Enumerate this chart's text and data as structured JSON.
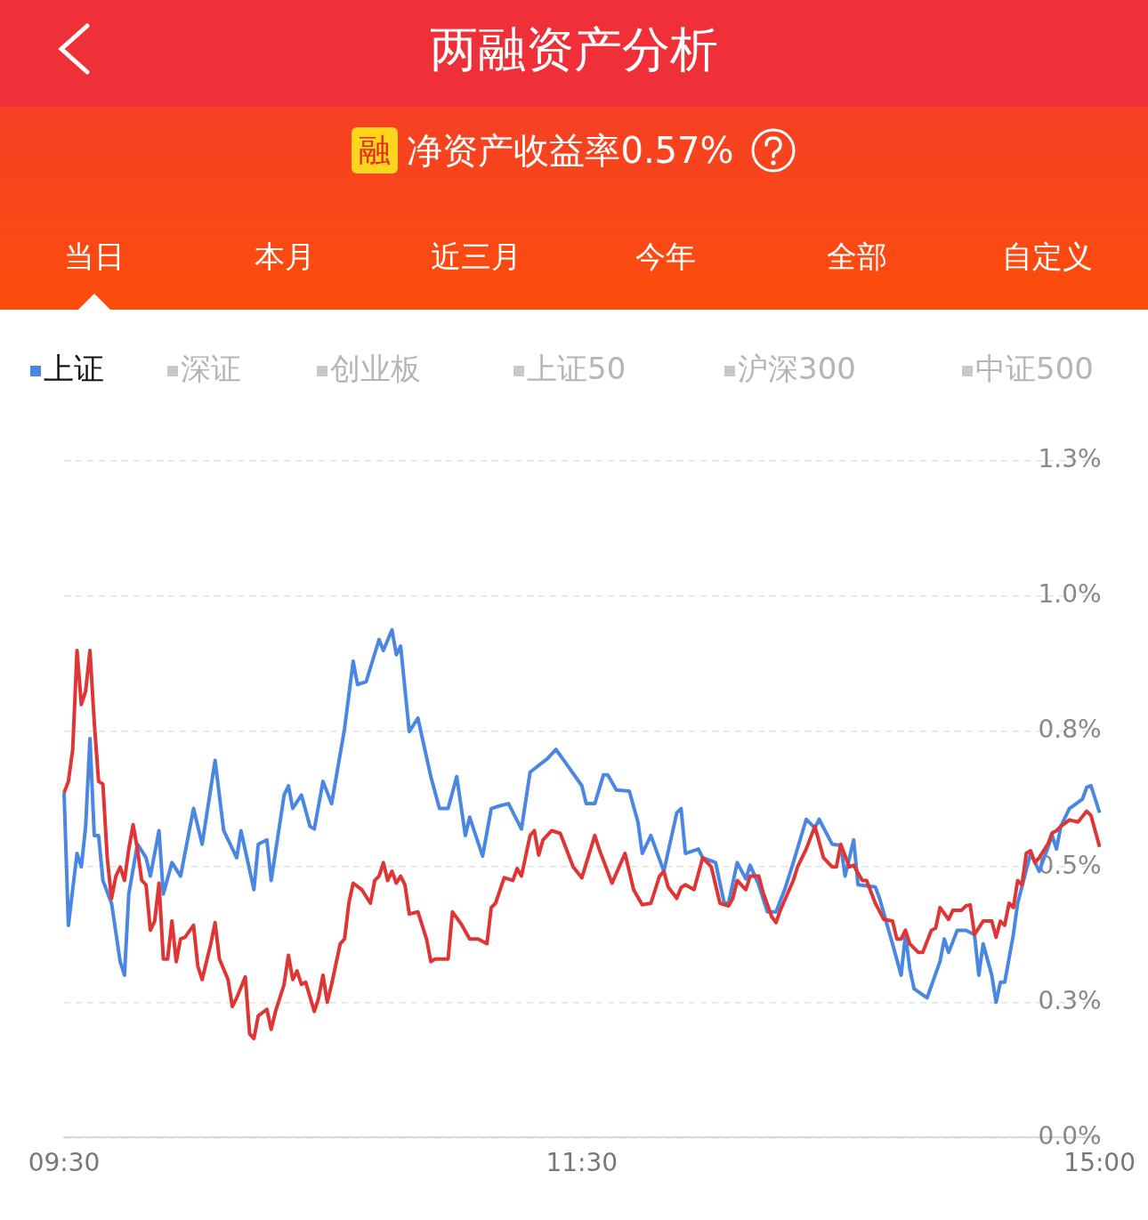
{
  "chart_data": {
    "type": "line",
    "title": "两融资产分析",
    "subtitle": "净资产收益率0.57%",
    "annotations": [
      "融",
      "当日",
      "本月",
      "近三月",
      "今年",
      "全部",
      "自定义",
      "深证",
      "创业板",
      "上证50",
      "沪深300",
      "中证500"
    ],
    "categories": [
      "09:30",
      null,
      null,
      null,
      null,
      null,
      null,
      null,
      null,
      null,
      null,
      null,
      null,
      null,
      null,
      null,
      null,
      null,
      null,
      null,
      null,
      null,
      null,
      null,
      null,
      null,
      null,
      null,
      null,
      null,
      null,
      null,
      null,
      null,
      null,
      null,
      null,
      null,
      null,
      null,
      null,
      null,
      null,
      null,
      null,
      null,
      null,
      null,
      null,
      null,
      null,
      null,
      null,
      null,
      null,
      null,
      null,
      null,
      null,
      null,
      null,
      null,
      null,
      null,
      null,
      null,
      null,
      null,
      null,
      null,
      null,
      null,
      null,
      null,
      null,
      null,
      null,
      null,
      null,
      null,
      null,
      null,
      null,
      null,
      null,
      null,
      null,
      null,
      null,
      null,
      null,
      null,
      null,
      null,
      null,
      null,
      null,
      null,
      null,
      null,
      null,
      null,
      null,
      null,
      null,
      null,
      null,
      null,
      null,
      null,
      null,
      null,
      null,
      null,
      null,
      null,
      null,
      null,
      null,
      null,
      "11:30",
      null,
      null,
      null,
      null,
      null,
      null,
      null,
      null,
      null,
      null,
      null,
      null,
      null,
      null,
      null,
      null,
      null,
      null,
      null,
      null,
      null,
      null,
      null,
      null,
      null,
      null,
      null,
      null,
      null,
      null,
      null,
      null,
      null,
      null,
      null,
      null,
      null,
      null,
      null,
      null,
      null,
      null,
      null,
      null,
      null,
      null,
      null,
      null,
      null,
      null,
      null,
      null,
      null,
      null,
      null,
      null,
      null,
      null,
      null,
      null,
      null,
      null,
      null,
      null,
      null,
      null,
      null,
      null,
      null,
      null,
      null,
      null,
      null,
      null,
      null,
      null,
      null,
      null,
      null,
      null,
      null,
      null,
      null,
      null,
      null,
      null,
      null,
      null,
      null,
      null,
      null,
      null,
      null,
      null,
      null,
      null,
      null,
      null,
      null,
      null,
      null,
      null,
      null,
      null,
      null,
      null,
      null,
      null,
      null,
      null,
      null,
      null,
      null,
      null,
      null,
      null,
      null,
      null,
      null,
      "15:00"
    ],
    "ylim": [
      0,
      1.25
    ],
    "yticks": [
      {
        "value": 0,
        "label": "0.0%"
      },
      {
        "value": 0.25,
        "label": "0.3%"
      },
      {
        "value": 0.5,
        "label": "0.5%"
      },
      {
        "value": 0.75,
        "label": "0.8%"
      },
      {
        "value": 1.0,
        "label": "1.0%"
      },
      {
        "value": 1.25,
        "label": "1.3%"
      }
    ],
    "grid": "y",
    "legend": "top left",
    "marker": "none",
    "line_style": "solid",
    "series": [
      {
        "color": "#e03535",
        "values": [
          0.637,
          0.658,
          0.717,
          0.9,
          0.8,
          0.825,
          0.9,
          0.767,
          0.658,
          0.653,
          0.517,
          0.442,
          0.483,
          0.5,
          0.475,
          0.533,
          0.578,
          0.533,
          0.475,
          0.467,
          0.383,
          0.4,
          0.47,
          0.33,
          0.33,
          0.4,
          0.325,
          0.367,
          0.37,
          null,
          0.392,
          0.317,
          0.292,
          null,
          0.358,
          0.397,
          0.33,
          null,
          0.292,
          0.242,
          0.258,
          null,
          0.297,
          0.192,
          0.183,
          0.225,
          null,
          0.237,
          0.2,
          0.233,
          null,
          0.283,
          0.337,
          0.292,
          0.308,
          0.283,
          0.287,
          null,
          0.233,
          0.258,
          0.3,
          0.25,
          0.283,
          null,
          0.358,
          0.367,
          0.433,
          0.47,
          null,
          0.458,
          null,
          0.433,
          0.475,
          0.483,
          0.508,
          0.475,
          0.492,
          0.47,
          0.483,
          0.467,
          0.413,
          null,
          0.417,
          null,
          0.367,
          0.325,
          0.33,
          null,
          null,
          0.33,
          0.417,
          null,
          0.395,
          null,
          0.367,
          null,
          0.367,
          null,
          0.358,
          0.425,
          0.433,
          null,
          0.48,
          null,
          0.475,
          0.497,
          0.483,
          null,
          0.558,
          0.567,
          0.522,
          0.55,
          null,
          0.567,
          null,
          0.562,
          null,
          null,
          0.5,
          null,
          0.48,
          null,
          null,
          0.558,
          0.533,
          null,
          null,
          0.47,
          null,
          null,
          0.525,
          null,
          0.458,
          null,
          0.43,
          null,
          0.433,
          null,
          0.483,
          0.492,
          0.463,
          null,
          0.442,
          0.462,
          0.467,
          null,
          0.458,
          null,
          0.517,
          null,
          0.5,
          null,
          0.433,
          null,
          0.428,
          0.442,
          0.475,
          null,
          0.458,
          0.483,
          null,
          0.483,
          0.453,
          null,
          0.408,
          0.397,
          0.42,
          null,
          null,
          0.475,
          0.5,
          null,
          0.533,
          null,
          0.575,
          null,
          0.517,
          null,
          0.5,
          0.5,
          0.542,
          null,
          0.5,
          0.503,
          null,
          0.475,
          0.475,
          null,
          0.433,
          null,
          0.403,
          null,
          0.4,
          0.367,
          0.367,
          0.383,
          0.358,
          null,
          0.342,
          0.342,
          null,
          0.383,
          0.387,
          0.425,
          null,
          0.403,
          0.42,
          null,
          0.42,
          0.428,
          0.43,
          0.375,
          null,
          0.4,
          null,
          0.4,
          0.37,
          0.4,
          0.392,
          0.433,
          0.425,
          0.475,
          0.467,
          0.525,
          0.53,
          0.508,
          0.517,
          null,
          0.542,
          0.563,
          0.567,
          0.575,
          null,
          0.587,
          null,
          0.583,
          null,
          0.603,
          0.595,
          null,
          0.537
        ]
      },
      {
        "name": "上证",
        "color": "#4a87e2",
        "values": [
          0.637,
          0.392,
          null,
          0.525,
          0.5,
          0.575,
          0.737,
          0.558,
          0.558,
          0.475,
          null,
          0.433,
          null,
          0.325,
          0.3,
          0.45,
          null,
          0.542,
          null,
          0.517,
          0.483,
          null,
          0.567,
          0.45,
          null,
          0.508,
          null,
          0.483,
          null,
          null,
          0.608,
          null,
          0.542,
          null,
          null,
          0.697,
          null,
          0.567,
          null,
          null,
          0.517,
          0.567,
          null,
          null,
          0.458,
          0.542,
          null,
          0.55,
          0.475,
          null,
          null,
          0.633,
          0.65,
          0.608,
          null,
          0.633,
          null,
          0.575,
          0.57,
          null,
          0.658,
          null,
          0.617,
          null,
          null,
          0.755,
          null,
          0.88,
          0.837,
          null,
          0.842,
          null,
          null,
          0.92,
          0.9,
          null,
          0.938,
          0.892,
          0.908,
          null,
          0.75,
          null,
          0.775,
          null,
          null,
          0.667,
          null,
          0.608,
          null,
          0.608,
          null,
          0.667,
          null,
          0.558,
          0.592,
          null,
          null,
          0.52,
          null,
          0.608,
          null,
          0.613,
          null,
          0.617,
          null,
          null,
          0.57,
          null,
          0.675,
          null,
          null,
          null,
          0.7,
          null,
          0.717,
          null,
          0.695,
          null,
          null,
          null,
          0.65,
          0.617,
          null,
          0.617,
          null,
          0.67,
          0.67,
          null,
          0.642,
          null,
          null,
          0.64,
          null,
          0.583,
          0.525,
          null,
          0.558,
          null,
          null,
          0.492,
          null,
          null,
          0.6,
          0.608,
          0.525,
          null,
          null,
          0.533,
          0.517,
          null,
          null,
          0.508,
          null,
          0.433,
          0.433,
          null,
          0.508,
          null,
          0.478,
          0.503,
          null,
          0.467,
          null,
          0.417,
          null,
          0.417,
          null,
          0.458,
          null,
          0.508,
          null,
          null,
          0.588,
          null,
          0.572,
          0.588,
          null,
          null,
          0.542,
          null,
          0.54,
          0.483,
          null,
          0.55,
          0.467,
          null,
          null,
          null,
          0.463,
          0.442,
          null,
          null,
          0.358,
          null,
          0.3,
          0.375,
          0.312,
          0.275,
          null,
          null,
          0.258,
          null,
          null,
          0.325,
          0.367,
          0.342,
          null,
          0.383,
          null,
          0.383,
          null,
          0.375,
          0.3,
          0.358,
          null,
          0.3,
          0.25,
          0.287,
          0.287,
          null,
          0.375,
          0.433,
          null,
          null,
          0.525,
          null,
          0.492,
          null,
          null,
          0.558,
          0.533,
          0.575,
          null,
          0.608,
          null,
          null,
          0.625,
          0.647,
          0.65,
          null,
          0.6
        ]
      }
    ]
  }
}
